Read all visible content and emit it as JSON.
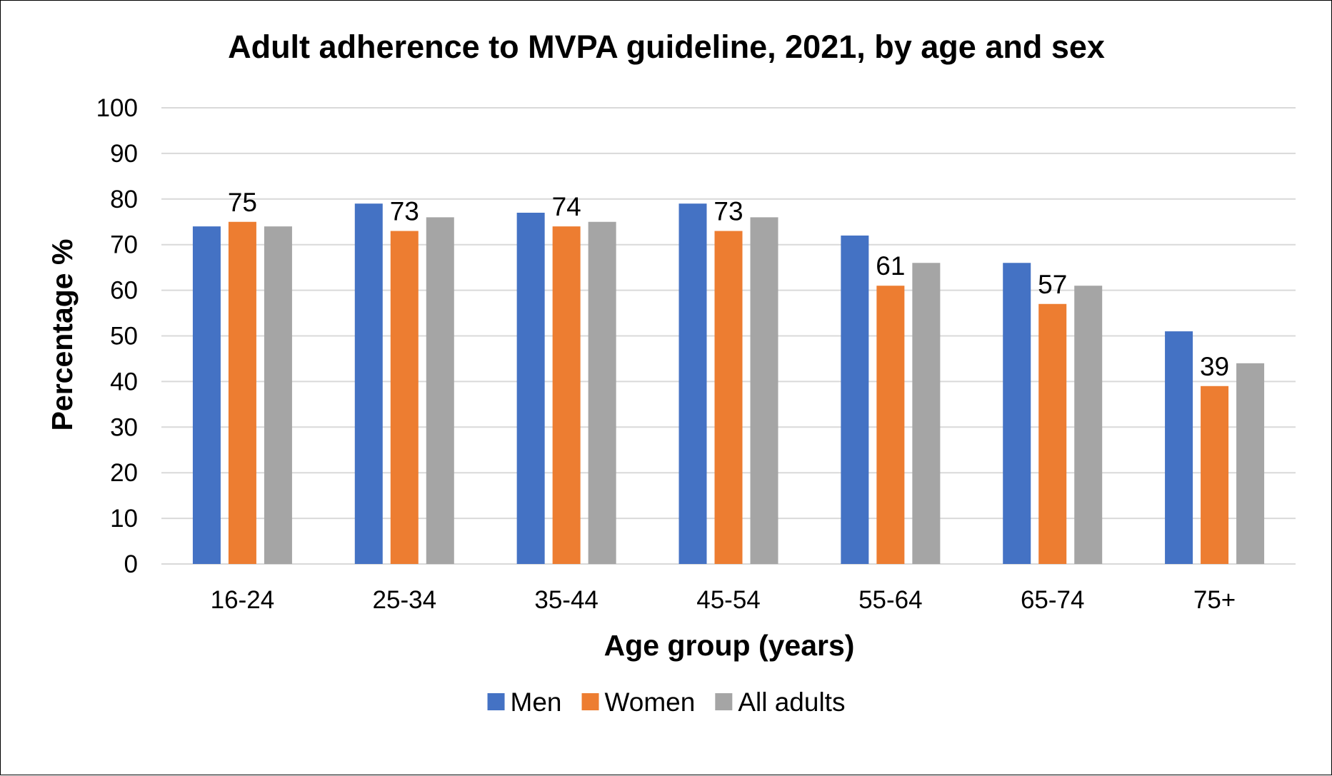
{
  "chart_data": {
    "type": "bar",
    "title": "Adult adherence to MVPA guideline, 2021, by age and sex",
    "xlabel": "Age group (years)",
    "ylabel": "Percentage %",
    "ylim": [
      0,
      100
    ],
    "yticks": [
      0,
      10,
      20,
      30,
      40,
      50,
      60,
      70,
      80,
      90,
      100
    ],
    "categories": [
      "16-24",
      "25-34",
      "35-44",
      "45-54",
      "55-64",
      "65-74",
      "75+"
    ],
    "series": [
      {
        "name": "Men",
        "color": "#4472c4",
        "values": [
          74,
          79,
          77,
          79,
          72,
          66,
          51
        ]
      },
      {
        "name": "Women",
        "color": "#ed7d31",
        "values": [
          75,
          73,
          74,
          73,
          61,
          57,
          39
        ],
        "show_labels": true
      },
      {
        "name": "All adults",
        "color": "#a5a5a5",
        "values": [
          74,
          76,
          75,
          76,
          66,
          61,
          44
        ]
      }
    ],
    "grid": true,
    "legend": "bottom"
  }
}
